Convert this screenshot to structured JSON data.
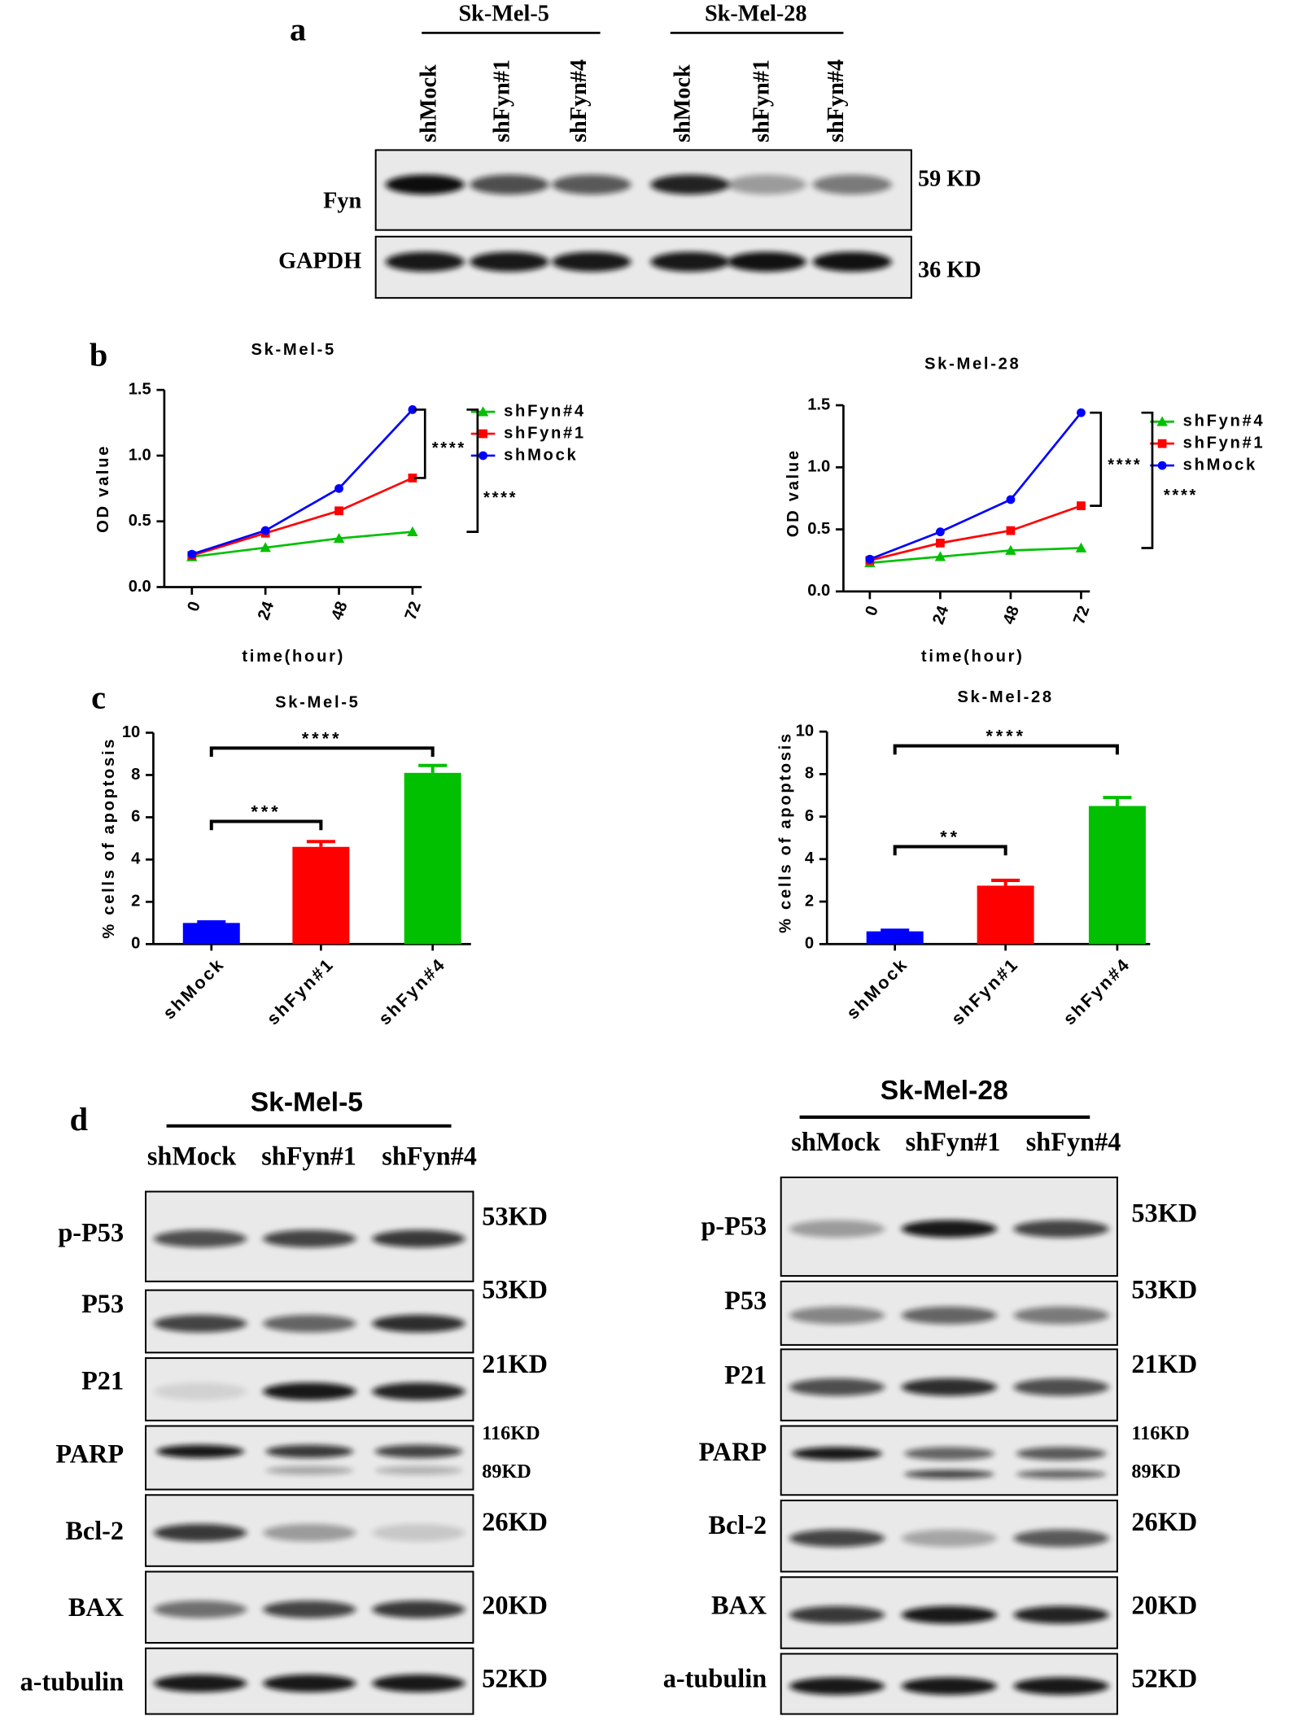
{
  "panel_a": {
    "label": "a",
    "groups": [
      "Sk-Mel-5",
      "Sk-Mel-28"
    ],
    "lanes": [
      "shMock",
      "shFyn#1",
      "shFyn#4",
      "shMock",
      "shFyn#1",
      "shFyn#4"
    ],
    "rows": [
      {
        "protein": "Fyn",
        "size": "59 KD"
      },
      {
        "protein": "GAPDH",
        "size": "36 KD"
      }
    ]
  },
  "panel_b_label": "b",
  "panel_c_label": "c",
  "panel_d": {
    "label": "d",
    "blots": [
      {
        "title": "Sk-Mel-5",
        "lanes": [
          "shMock",
          "shFyn#1",
          "shFyn#4"
        ],
        "rows": [
          {
            "protein": "p-P53",
            "sizes": [
              "53KD"
            ]
          },
          {
            "protein": "P53",
            "sizes": [
              "53KD"
            ]
          },
          {
            "protein": "P21",
            "sizes": [
              "21KD"
            ]
          },
          {
            "protein": "PARP",
            "sizes": [
              "116KD",
              "89KD"
            ]
          },
          {
            "protein": "Bcl-2",
            "sizes": [
              "26KD"
            ]
          },
          {
            "protein": "BAX",
            "sizes": [
              "20KD"
            ]
          },
          {
            "protein": "a-tubulin",
            "sizes": [
              "52KD"
            ]
          }
        ]
      },
      {
        "title": "Sk-Mel-28",
        "lanes": [
          "shMock",
          "shFyn#1",
          "shFyn#4"
        ],
        "rows": [
          {
            "protein": "p-P53",
            "sizes": [
              "53KD"
            ]
          },
          {
            "protein": "P53",
            "sizes": [
              "53KD"
            ]
          },
          {
            "protein": "P21",
            "sizes": [
              "21KD"
            ]
          },
          {
            "protein": "PARP",
            "sizes": [
              "116KD",
              "89KD"
            ]
          },
          {
            "protein": "Bcl-2",
            "sizes": [
              "26KD"
            ]
          },
          {
            "protein": "BAX",
            "sizes": [
              "20KD"
            ]
          },
          {
            "protein": "a-tubulin",
            "sizes": [
              "52KD"
            ]
          }
        ]
      }
    ]
  },
  "chart_data": [
    {
      "type": "line",
      "title": "Sk-Mel-5",
      "x_label": "time(hour)",
      "y_label": "OD value",
      "x": [
        0,
        24,
        48,
        72
      ],
      "xlim": [
        -9,
        75
      ],
      "xticks": [
        0,
        24,
        48,
        72
      ],
      "ylim": [
        0,
        1.5
      ],
      "yticks": [
        {
          "value": 0,
          "label": "0.0"
        },
        0.5,
        {
          "value": 1,
          "label": "1.0"
        },
        1.5
      ],
      "series": [
        {
          "name": "shFyn#4",
          "color": "#00c000",
          "marker": "triangle",
          "values": [
            0.23,
            0.3,
            0.37,
            0.42
          ]
        },
        {
          "name": "shFyn#1",
          "color": "#ff0000",
          "marker": "square",
          "values": [
            0.24,
            0.41,
            0.58,
            0.83
          ]
        },
        {
          "name": "shMock",
          "color": "#0000ff",
          "marker": "circle",
          "values": [
            0.25,
            0.43,
            0.75,
            1.35
          ]
        }
      ],
      "annotations": [
        "****",
        "****"
      ]
    },
    {
      "type": "line",
      "title": "Sk-Mel-28",
      "x_label": "time(hour)",
      "y_label": "OD value",
      "x": [
        0,
        24,
        48,
        72
      ],
      "xlim": [
        -9,
        75
      ],
      "xticks": [
        0,
        24,
        48,
        72
      ],
      "ylim": [
        0,
        1.5
      ],
      "yticks": [
        {
          "value": 0,
          "label": "0.0"
        },
        0.5,
        {
          "value": 1,
          "label": "1.0"
        },
        1.5
      ],
      "series": [
        {
          "name": "shFyn#4",
          "color": "#00c000",
          "marker": "triangle",
          "values": [
            0.23,
            0.28,
            0.33,
            0.35
          ]
        },
        {
          "name": "shFyn#1",
          "color": "#ff0000",
          "marker": "square",
          "values": [
            0.25,
            0.39,
            0.49,
            0.69
          ]
        },
        {
          "name": "shMock",
          "color": "#0000ff",
          "marker": "circle",
          "values": [
            0.26,
            0.48,
            0.74,
            1.44
          ]
        }
      ],
      "annotations": [
        "****",
        "****"
      ]
    },
    {
      "type": "bar",
      "title": "Sk-Mel-5",
      "y_label": "% cells of apoptosis",
      "categories": [
        "shMock",
        "shFyn#1",
        "shFyn#4"
      ],
      "values": [
        1.0,
        4.6,
        8.1
      ],
      "errors": [
        0.05,
        0.25,
        0.35
      ],
      "colors": [
        "#0000ff",
        "#ff0000",
        "#00c000"
      ],
      "ylim": [
        0,
        10
      ],
      "yticks": [
        0,
        2,
        4,
        6,
        8,
        10
      ],
      "annotations": [
        "***",
        "****"
      ]
    },
    {
      "type": "bar",
      "title": "Sk-Mel-28",
      "y_label": "% cells of apoptosis",
      "categories": [
        "shMock",
        "shFyn#1",
        "shFyn#4"
      ],
      "values": [
        0.6,
        2.75,
        6.5
      ],
      "errors": [
        0.05,
        0.25,
        0.4
      ],
      "colors": [
        "#0000ff",
        "#ff0000",
        "#00c000"
      ],
      "ylim": [
        0,
        10
      ],
      "yticks": [
        0,
        2,
        4,
        6,
        8,
        10
      ],
      "annotations": [
        "**",
        "****"
      ]
    }
  ]
}
